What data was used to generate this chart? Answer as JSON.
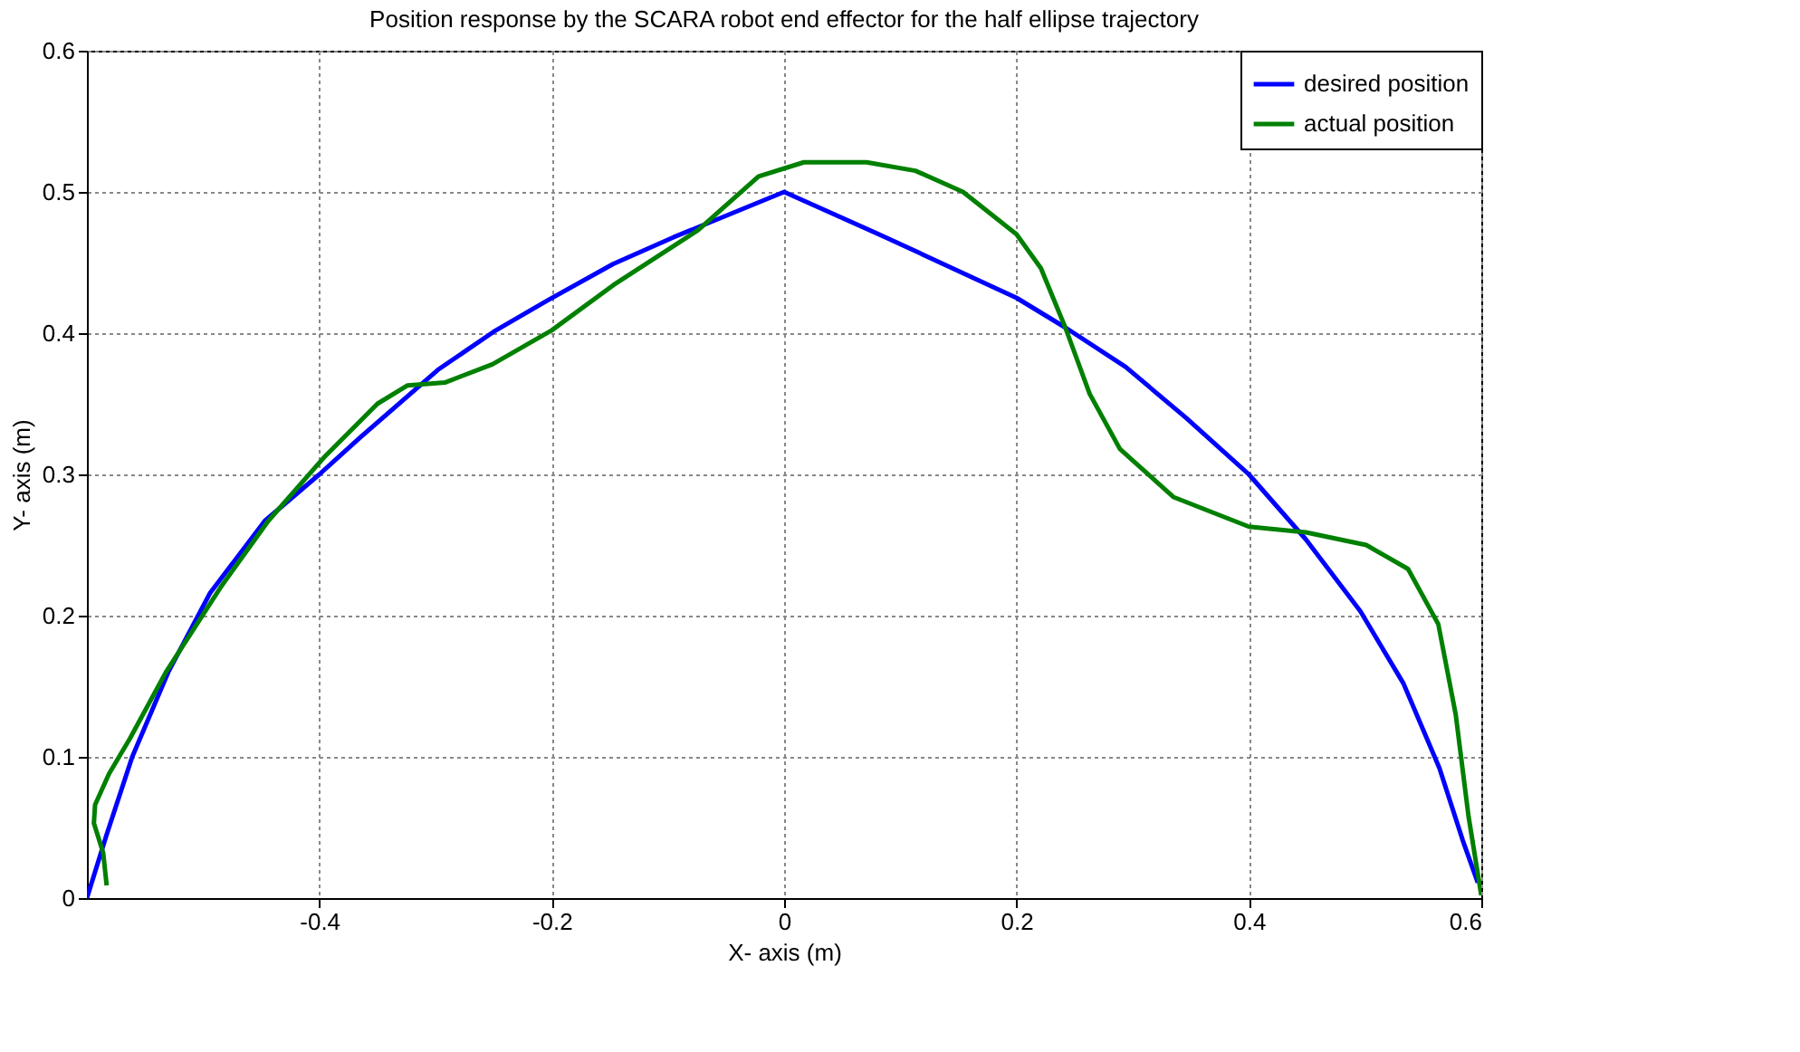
{
  "chart_data": {
    "type": "line",
    "title": "Position response by the SCARA robot end effector for the half ellipse trajectory",
    "xlabel": "X- axis (m)",
    "ylabel": "Y- axis (m)",
    "xlim": [
      -0.6,
      0.6
    ],
    "xticks": [
      -0.4,
      -0.2,
      0,
      0.2,
      0.4,
      0.6
    ],
    "ylim": [
      0,
      0.6
    ],
    "yticks": [
      0,
      0.1,
      0.2,
      0.3,
      0.4,
      0.5,
      0.6
    ],
    "grid": true,
    "legend": "top right",
    "line_style": "solid",
    "marker": "none",
    "series": [
      {
        "name": "desired position",
        "color": "#0000ff",
        "x": [
          -0.6,
          -0.583,
          -0.561,
          -0.53,
          -0.494,
          -0.447,
          -0.4,
          -0.365,
          -0.298,
          -0.25,
          -0.204,
          -0.147,
          -0.095,
          0,
          0.087,
          0.2,
          0.242,
          0.294,
          0.346,
          0.4,
          0.449,
          0.496,
          0.533,
          0.564,
          0.584,
          0.597
        ],
        "values": [
          0,
          0.045,
          0.1,
          0.16,
          0.216,
          0.267,
          0.3,
          0.326,
          0.374,
          0.401,
          0.423,
          0.449,
          0.468,
          0.5,
          0.468,
          0.425,
          0.404,
          0.376,
          0.34,
          0.3,
          0.254,
          0.203,
          0.152,
          0.092,
          0.041,
          0.011
        ]
      },
      {
        "name": "actual position",
        "color": "#008000",
        "x": [
          -0.583,
          -0.586,
          -0.594,
          -0.593,
          -0.581,
          -0.563,
          -0.532,
          -0.485,
          -0.444,
          -0.396,
          -0.35,
          -0.324,
          -0.292,
          -0.251,
          -0.2,
          -0.147,
          -0.074,
          -0.022,
          0.017,
          0.071,
          0.113,
          0.154,
          0.2,
          0.221,
          0.242,
          0.263,
          0.289,
          0.335,
          0.4,
          0.449,
          0.501,
          0.537,
          0.563,
          0.578,
          0.589,
          0.6
        ],
        "values": [
          0.009,
          0.032,
          0.053,
          0.066,
          0.088,
          0.113,
          0.16,
          0.22,
          0.267,
          0.312,
          0.35,
          0.363,
          0.365,
          0.378,
          0.402,
          0.434,
          0.473,
          0.511,
          0.521,
          0.521,
          0.515,
          0.5,
          0.47,
          0.446,
          0.404,
          0.357,
          0.318,
          0.284,
          0.263,
          0.259,
          0.25,
          0.233,
          0.194,
          0.13,
          0.058,
          0.002
        ]
      }
    ]
  }
}
